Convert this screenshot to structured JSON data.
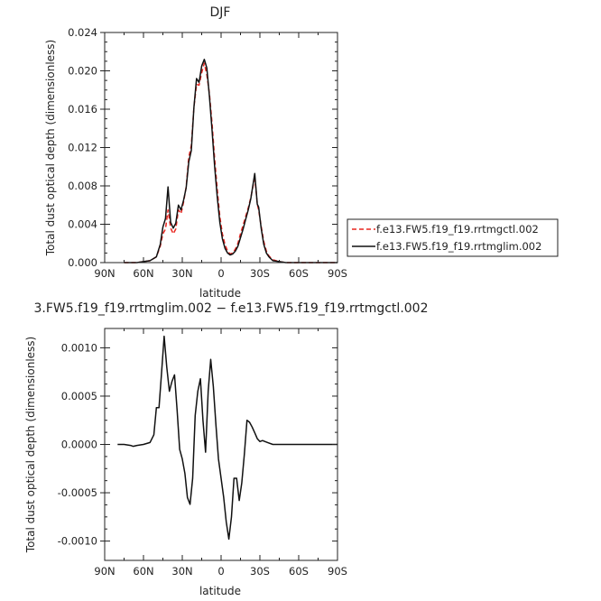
{
  "chart_data": [
    {
      "type": "line",
      "title": "DJF",
      "xlabel": "latitude",
      "ylabel": "Total dust optical depth (dimensionless)",
      "xlim": [
        90,
        -90
      ],
      "ylim": [
        0,
        0.024
      ],
      "x_ticks": [
        90,
        60,
        30,
        0,
        -30,
        -60,
        -90
      ],
      "x_tick_labels": [
        "90N",
        "60N",
        "30N",
        "0",
        "30S",
        "60S",
        "90S"
      ],
      "y_ticks": [
        0,
        0.004,
        0.008,
        0.012,
        0.016,
        0.02,
        0.024
      ],
      "y_tick_labels": [
        "0.000",
        "0.004",
        "0.008",
        "0.012",
        "0.016",
        "0.020",
        "0.024"
      ],
      "legend": "right",
      "series": [
        {
          "name": "f.e13.FW5.f19_f19.rrtmgctl.002",
          "color": "#e8251f",
          "dash": "dashed",
          "x": [
            75,
            70,
            65,
            60,
            55,
            50,
            47,
            45,
            43,
            41,
            39,
            37,
            35,
            33,
            31,
            29,
            27,
            25,
            23,
            21,
            19,
            17,
            15,
            13,
            11,
            9,
            7,
            5,
            3,
            1,
            -1,
            -3,
            -5,
            -7,
            -9,
            -11,
            -13,
            -15,
            -17,
            -19,
            -21,
            -23,
            -25,
            -26,
            -27,
            -28,
            -29,
            -31,
            -33,
            -35,
            -37,
            -40,
            -45,
            -50,
            -55,
            -60,
            -70,
            -80,
            -90
          ],
          "y": [
            0.0,
            0.0,
            0.0,
            0.0001,
            0.0002,
            0.0006,
            0.0017,
            0.003,
            0.0035,
            0.0055,
            0.0036,
            0.003,
            0.0035,
            0.0055,
            0.0051,
            0.0063,
            0.0079,
            0.011,
            0.0122,
            0.0162,
            0.0186,
            0.0185,
            0.0198,
            0.0208,
            0.0196,
            0.0176,
            0.0145,
            0.0109,
            0.0077,
            0.0048,
            0.003,
            0.0019,
            0.0012,
            0.0009,
            0.001,
            0.0014,
            0.002,
            0.003,
            0.0039,
            0.0048,
            0.0057,
            0.0068,
            0.0082,
            0.0087,
            0.0076,
            0.0061,
            0.0055,
            0.0038,
            0.0022,
            0.0012,
            0.0007,
            0.0003,
            0.0001,
            0.0,
            0.0,
            0.0,
            0.0,
            0.0,
            0.0
          ]
        },
        {
          "name": "f.e13.FW5.f19_f19.rrtmglim.002",
          "color": "#111111",
          "dash": "solid",
          "x": [
            75,
            70,
            65,
            60,
            55,
            50,
            47,
            45,
            43,
            41,
            39,
            37,
            35,
            33,
            31,
            29,
            27,
            25,
            23,
            21,
            19,
            17,
            15,
            13,
            11,
            9,
            7,
            5,
            3,
            1,
            -1,
            -3,
            -5,
            -7,
            -9,
            -11,
            -13,
            -15,
            -17,
            -19,
            -21,
            -23,
            -25,
            -26,
            -27,
            -28,
            -29,
            -31,
            -33,
            -35,
            -37,
            -40,
            -45,
            -50,
            -55,
            -60,
            -70,
            -80,
            -90
          ],
          "y": [
            0.0,
            0.0,
            0.0,
            0.0001,
            0.0002,
            0.0006,
            0.0019,
            0.0037,
            0.0046,
            0.0079,
            0.0042,
            0.0036,
            0.0041,
            0.006,
            0.0055,
            0.0065,
            0.0078,
            0.0105,
            0.0117,
            0.0162,
            0.0192,
            0.0188,
            0.0205,
            0.0212,
            0.0203,
            0.0173,
            0.0138,
            0.0101,
            0.0069,
            0.0042,
            0.0025,
            0.0015,
            0.001,
            0.0008,
            0.0009,
            0.0012,
            0.0017,
            0.0026,
            0.0035,
            0.0045,
            0.0055,
            0.0067,
            0.0084,
            0.0093,
            0.0077,
            0.0061,
            0.0058,
            0.0036,
            0.0019,
            0.001,
            0.0006,
            0.0002,
            0.0001,
            0.0,
            0.0,
            0.0,
            0.0,
            0.0,
            0.0
          ]
        }
      ]
    },
    {
      "type": "line",
      "title": "3.FW5.f19_f19.rrtmglim.002 − f.e13.FW5.f19_f19.rrtmgctl.002",
      "xlabel": "latitude",
      "ylabel": "Total dust optical depth (dimensionless)",
      "xlim": [
        90,
        -90
      ],
      "ylim": [
        -0.0012,
        0.0012
      ],
      "x_ticks": [
        90,
        60,
        30,
        0,
        -30,
        -60,
        -90
      ],
      "x_tick_labels": [
        "90N",
        "60N",
        "30N",
        "0",
        "30S",
        "60S",
        "90S"
      ],
      "y_ticks": [
        -0.001,
        -0.0005,
        0,
        0.0005,
        0.001
      ],
      "y_tick_labels": [
        "-0.0010",
        "-0.0005",
        "0.0000",
        "0.0005",
        "0.0010"
      ],
      "series": [
        {
          "color": "#111111",
          "dash": "solid",
          "x": [
            80,
            75,
            70,
            68,
            65,
            60,
            55,
            52,
            50,
            48,
            46,
            44,
            42,
            40,
            38,
            36,
            34,
            32,
            30,
            28,
            26,
            24,
            22,
            20,
            18,
            16,
            14,
            12,
            10,
            8,
            6,
            4,
            2,
            0,
            -2,
            -4,
            -6,
            -8,
            -10,
            -12,
            -14,
            -16,
            -18,
            -20,
            -22,
            -24,
            -26,
            -28,
            -30,
            -32,
            -34,
            -36,
            -40,
            -45,
            -50,
            -60,
            -70,
            -80,
            -90
          ],
          "y": [
            0.0,
            0.0,
            -1e-05,
            -2e-05,
            -1e-05,
            0.0,
            2e-05,
            0.0001,
            0.00038,
            0.00038,
            0.00075,
            0.00112,
            0.0008,
            0.00055,
            0.00065,
            0.00072,
            0.00035,
            -5e-05,
            -0.00015,
            -0.0003,
            -0.00055,
            -0.00062,
            -0.00035,
            0.0003,
            0.00055,
            0.00068,
            0.00025,
            -8e-05,
            0.00055,
            0.00088,
            0.0006,
            0.0002,
            -0.00015,
            -0.00035,
            -0.00055,
            -0.0008,
            -0.00098,
            -0.00075,
            -0.00035,
            -0.00035,
            -0.00058,
            -0.0004,
            -0.0001,
            0.00025,
            0.00023,
            0.00018,
            0.00012,
            6e-05,
            3e-05,
            4e-05,
            3e-05,
            2e-05,
            0.0,
            0.0,
            0.0,
            0.0,
            0.0,
            0.0,
            0.0
          ]
        }
      ]
    }
  ]
}
